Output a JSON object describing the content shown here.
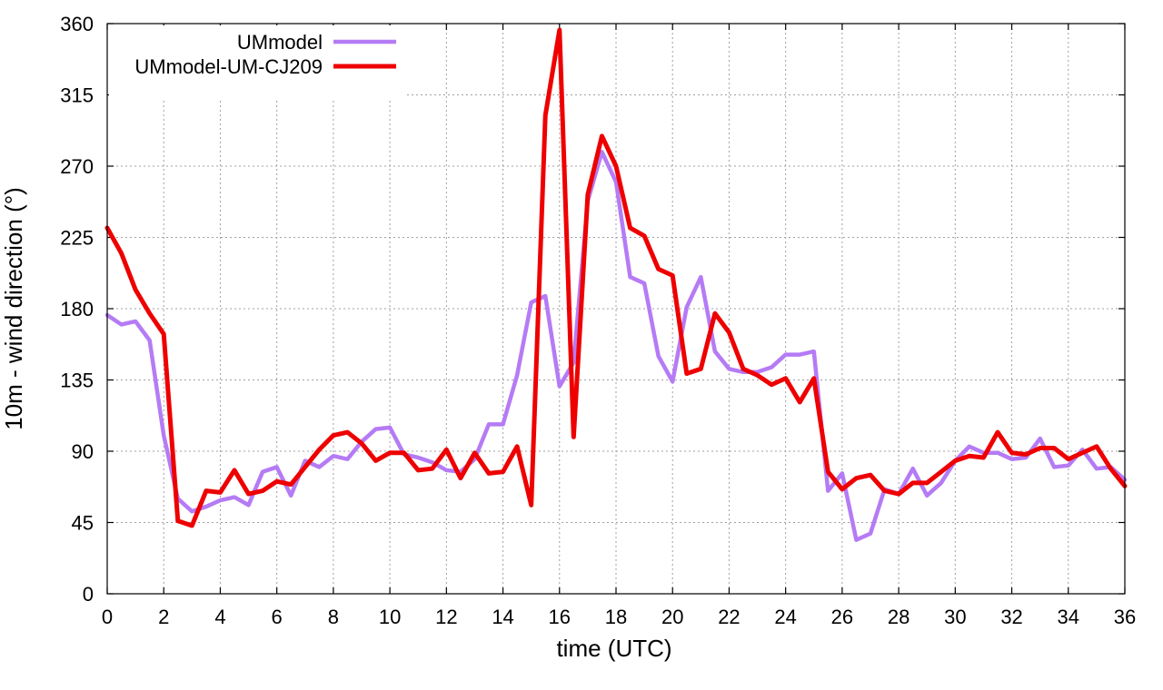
{
  "chart_data": {
    "type": "line",
    "xlabel": "time (UTC)",
    "ylabel": "10m - wind direction (°)",
    "xlim": [
      0,
      36
    ],
    "ylim": [
      0,
      360
    ],
    "xticks": [
      0,
      2,
      4,
      6,
      8,
      10,
      12,
      14,
      16,
      18,
      20,
      22,
      24,
      26,
      28,
      30,
      32,
      34,
      36
    ],
    "yticks": [
      0,
      45,
      90,
      135,
      180,
      225,
      270,
      315,
      360
    ],
    "grid": true,
    "legend_position": "top-left",
    "x": [
      0,
      0.5,
      1,
      1.5,
      2,
      2.5,
      3,
      3.5,
      4,
      4.5,
      5,
      5.5,
      6,
      6.5,
      7,
      7.5,
      8,
      8.5,
      9,
      9.5,
      10,
      10.5,
      11,
      11.5,
      12,
      12.5,
      13,
      13.5,
      14,
      14.5,
      15,
      15.5,
      16,
      16.5,
      17,
      17.5,
      18,
      18.5,
      19,
      19.5,
      20,
      20.5,
      21,
      21.5,
      22,
      22.5,
      23,
      23.5,
      24,
      24.5,
      25,
      25.5,
      26,
      26.5,
      27,
      27.5,
      28,
      28.5,
      29,
      29.5,
      30,
      30.5,
      31,
      31.5,
      32,
      32.5,
      33,
      33.5,
      34,
      34.5,
      35,
      35.5,
      36
    ],
    "series": [
      {
        "name": "UMmodel",
        "color": "#b57bf5",
        "values": [
          176,
          170,
          172,
          160,
          100,
          60,
          52,
          55,
          59,
          61,
          56,
          77,
          80,
          62,
          84,
          80,
          87,
          85,
          96,
          104,
          105,
          88,
          86,
          83,
          78,
          77,
          85,
          107,
          107,
          138,
          184,
          188,
          131,
          146,
          248,
          279,
          260,
          200,
          196,
          150,
          134,
          181,
          200,
          153,
          142,
          140,
          140,
          143,
          151,
          151,
          153,
          65,
          76,
          34,
          38,
          66,
          63,
          79,
          62,
          70,
          84,
          93,
          89,
          89,
          85,
          86,
          98,
          80,
          81,
          91,
          79,
          80,
          72
        ]
      },
      {
        "name": "UMmodel-UM-CJ209",
        "color": "#ee0000",
        "values": [
          231,
          215,
          192,
          177,
          164,
          46,
          43,
          65,
          64,
          78,
          63,
          65,
          71,
          69,
          80,
          91,
          100,
          102,
          95,
          84,
          89,
          89,
          78,
          79,
          91,
          73,
          89,
          76,
          77,
          93,
          56,
          302,
          356,
          99,
          252,
          289,
          270,
          231,
          226,
          205,
          201,
          139,
          142,
          177,
          165,
          142,
          138,
          132,
          136,
          121,
          136,
          77,
          66,
          73,
          75,
          65,
          63,
          70,
          70,
          77,
          84,
          87,
          86,
          102,
          89,
          88,
          92,
          92,
          85,
          89,
          93,
          79,
          68
        ]
      }
    ]
  }
}
